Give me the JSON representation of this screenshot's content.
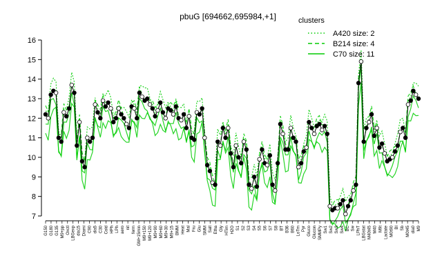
{
  "chart_data": {
    "type": "line",
    "title": "pbuG [694662,695984,+1]",
    "xlabel": "",
    "ylabel": "",
    "ylim": [
      7,
      16
    ],
    "y_ticks": [
      7,
      8,
      9,
      10,
      11,
      12,
      13,
      14,
      15,
      16
    ],
    "legend": {
      "title": "clusters",
      "placement": "top-right",
      "entries": [
        {
          "label": "A420 size: 2",
          "style": "dotted"
        },
        {
          "label": "B214 size: 4",
          "style": "dashed"
        },
        {
          "label": "C70 size: 11",
          "style": "solid"
        }
      ]
    },
    "colors": {
      "series": "#000000",
      "cluster_band": "#00cc00",
      "axis": "#000000",
      "background": "#ffffff"
    },
    "x_tick_labels": [
      "G150",
      "G180",
      "G135",
      "M9+pp",
      "Oxctl",
      "LBGexp",
      "dia15",
      "Diami",
      "C90",
      "dia5",
      "C30",
      "Cold",
      "HPh",
      "LPh",
      "aero",
      "nit",
      "ferm",
      "GM+15min",
      "M9+150",
      "M9+120",
      "M9+90",
      "M9+60",
      "M9+30",
      "M9+15",
      "BMM",
      "Heat",
      "Mal",
      "Fru",
      "Glu",
      "SMM",
      "Salt",
      "Etha",
      "Gly",
      "HTim",
      "H2O",
      "S1",
      "S2",
      "S3",
      "S4",
      "S5",
      "S6",
      "S7",
      "S8",
      "BT",
      "B36",
      "B60",
      "LoTm",
      "Pyr",
      "Gluco",
      "Glucon",
      "SMMPy",
      "Sw1",
      "Sw2",
      "Sw3",
      "Sw4",
      "BC",
      "Sw",
      "LPhT",
      "LBGstat",
      "M40t45",
      "M40",
      "M9t",
      "Lactate",
      "M0t90",
      "BI",
      "Sb",
      "M0t45",
      "dia0",
      "M9"
    ],
    "series": [
      {
        "values": [
          12.2,
          12.0,
          13.2,
          13.4,
          13.3,
          11.0,
          10.8,
          12.3,
          12.1,
          12.5,
          13.7,
          13.3,
          10.6,
          11.8,
          9.8,
          9.5,
          11.0,
          10.8,
          11.0,
          12.7,
          12.3,
          12.0,
          12.9,
          12.6,
          12.8,
          12.5,
          11.8,
          12.0,
          12.5,
          12.2,
          12.0,
          11.7,
          11.5,
          12.6,
          12.5,
          12.0,
          13.3,
          13.1,
          12.9,
          13.0,
          12.7,
          12.5,
          12.1,
          12.4,
          12.8,
          12.3,
          12.0,
          12.5,
          12.4,
          12.2,
          12.6,
          12.0,
          11.9,
          12.2,
          11.5,
          12.1,
          11.0,
          10.9,
          12.3,
          12.2,
          12.5,
          11.0,
          9.6,
          9.3,
          8.7,
          8.6,
          10.8,
          10.6,
          11.5,
          11.0,
          11.5,
          10.2,
          9.5,
          10.6,
          10.0,
          9.7,
          10.8,
          10.4,
          8.6,
          8.4,
          9.0,
          8.5,
          9.9,
          10.4,
          9.7,
          9.6,
          10.1,
          8.6,
          8.3,
          9.7,
          11.7,
          11.2,
          10.4,
          10.4,
          11.5,
          11.0,
          10.8,
          9.5,
          9.7,
          10.3,
          10.5,
          11.8,
          11.5,
          11.2,
          11.6,
          11.7,
          11.4,
          11.6,
          11.2,
          7.5,
          7.3,
          7.4,
          7.4,
          7.6,
          7.8,
          7.1,
          7.5,
          7.8,
          8.3,
          8.6,
          13.8,
          14.9,
          10.8,
          11.5,
          11.8,
          12.2,
          11.1,
          11.5,
          10.5,
          10.7,
          10.2,
          9.8,
          9.9,
          10.0,
          10.3,
          10.6,
          11.3,
          11.5,
          11.0,
          12.7,
          12.9,
          13.4,
          13.2,
          13.0
        ]
      }
    ]
  }
}
